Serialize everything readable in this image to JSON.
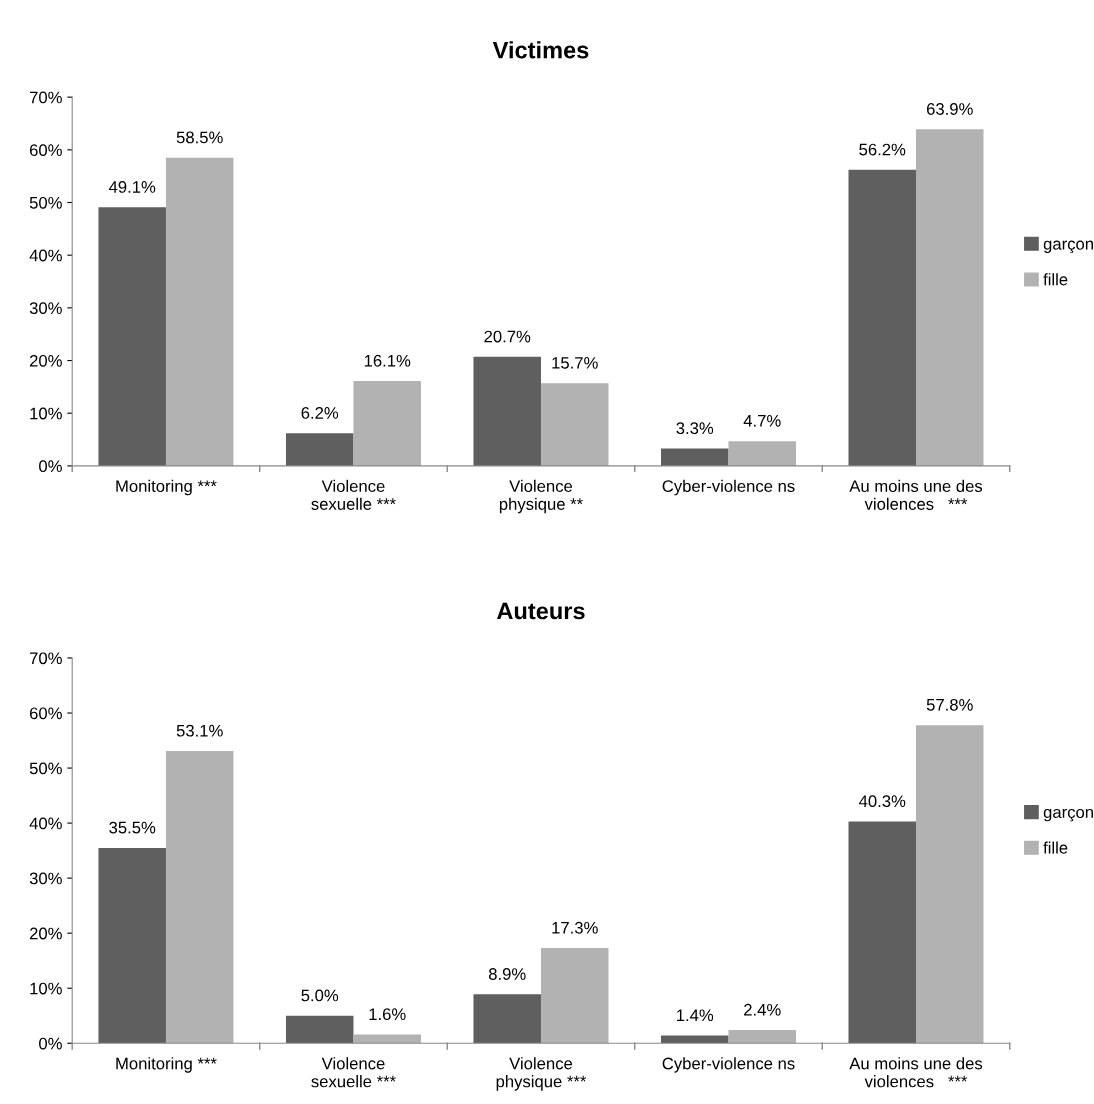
{
  "chart_data": [
    {
      "type": "bar",
      "title": "Victimes",
      "categories": [
        "Monitoring ***",
        "Violence\nsexuelle ***",
        "Violence\nphysique **",
        "Cyber-violence ns",
        "Au moins une des\nviolences   ***"
      ],
      "series": [
        {
          "name": "garçon",
          "color": "#5f5f5f",
          "values": [
            49.1,
            6.2,
            20.7,
            3.3,
            56.2
          ],
          "value_labels": [
            "49.1%",
            "6.2%",
            "20.7%",
            "3.3%",
            "56.2%"
          ]
        },
        {
          "name": "fille",
          "color": "#b2b2b2",
          "values": [
            58.5,
            16.1,
            15.7,
            4.7,
            63.9
          ],
          "value_labels": [
            "58.5%",
            "16.1%",
            "15.7%",
            "4.7%",
            "63.9%"
          ]
        }
      ],
      "ylim": [
        0,
        70
      ],
      "yticks": [
        {
          "value": 0,
          "label": "0%"
        },
        {
          "value": 10,
          "label": "10%"
        },
        {
          "value": 20,
          "label": "20%"
        },
        {
          "value": 30,
          "label": "30%"
        },
        {
          "value": 40,
          "label": "40%"
        },
        {
          "value": 50,
          "label": "50%"
        },
        {
          "value": 60,
          "label": "60%"
        },
        {
          "value": 70,
          "label": "70%"
        }
      ],
      "grid": false,
      "legend": "right"
    },
    {
      "type": "bar",
      "title": "Auteurs",
      "categories": [
        "Monitoring ***",
        "Violence\nsexuelle ***",
        "Violence\nphysique ***",
        "Cyber-violence ns",
        "Au moins une des\nviolences   ***"
      ],
      "series": [
        {
          "name": "garçon",
          "color": "#5f5f5f",
          "values": [
            35.5,
            5.0,
            8.9,
            1.4,
            40.3
          ],
          "value_labels": [
            "35.5%",
            "5.0%",
            "8.9%",
            "1.4%",
            "40.3%"
          ]
        },
        {
          "name": "fille",
          "color": "#b2b2b2",
          "values": [
            53.1,
            1.6,
            17.3,
            2.4,
            57.8
          ],
          "value_labels": [
            "53.1%",
            "1.6%",
            "17.3%",
            "2.4%",
            "57.8%"
          ]
        }
      ],
      "ylim": [
        0,
        70
      ],
      "yticks": [
        {
          "value": 0,
          "label": "0%"
        },
        {
          "value": 10,
          "label": "10%"
        },
        {
          "value": 20,
          "label": "20%"
        },
        {
          "value": 30,
          "label": "30%"
        },
        {
          "value": 40,
          "label": "40%"
        },
        {
          "value": 50,
          "label": "50%"
        },
        {
          "value": 60,
          "label": "60%"
        },
        {
          "value": 70,
          "label": "70%"
        }
      ],
      "grid": false,
      "legend": "right"
    }
  ]
}
